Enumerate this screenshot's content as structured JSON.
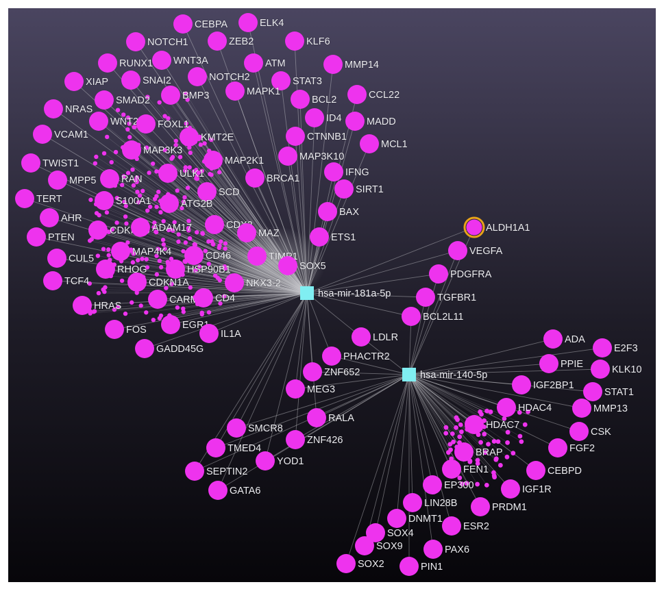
{
  "colors": {
    "background_top": "#4a4560",
    "background_bottom": "#07060a",
    "gene_node": "#ee33ee",
    "mirna_node": "#80eef2",
    "edge": "#c8c8cc",
    "highlight_ring": "#e8a21a",
    "label": "#ececf0"
  },
  "network": {
    "hubs": [
      {
        "label": "hsa-mir-181a-5p",
        "shape": "square"
      },
      {
        "label": "hsa-mir-140-5p",
        "shape": "square"
      }
    ],
    "nodes": [
      {
        "label": "CEBPA",
        "targets": [
          "hsa-mir-181a-5p"
        ]
      },
      {
        "label": "ELK4",
        "targets": [
          "hsa-mir-181a-5p"
        ]
      },
      {
        "label": "NOTCH1",
        "targets": [
          "hsa-mir-181a-5p"
        ]
      },
      {
        "label": "ZEB2",
        "targets": [
          "hsa-mir-181a-5p"
        ]
      },
      {
        "label": "KLF6",
        "targets": [
          "hsa-mir-181a-5p"
        ]
      },
      {
        "label": "RUNX1",
        "targets": [
          "hsa-mir-181a-5p"
        ]
      },
      {
        "label": "WNT3A",
        "targets": [
          "hsa-mir-181a-5p"
        ]
      },
      {
        "label": "ATM",
        "targets": [
          "hsa-mir-181a-5p"
        ]
      },
      {
        "label": "MMP14",
        "targets": [
          "hsa-mir-181a-5p"
        ]
      },
      {
        "label": "XIAP",
        "targets": [
          "hsa-mir-181a-5p"
        ]
      },
      {
        "label": "SNAI2",
        "targets": [
          "hsa-mir-181a-5p"
        ]
      },
      {
        "label": "NOTCH2",
        "targets": [
          "hsa-mir-181a-5p"
        ]
      },
      {
        "label": "STAT3",
        "targets": [
          "hsa-mir-181a-5p"
        ]
      },
      {
        "label": "MAPK1",
        "targets": [
          "hsa-mir-181a-5p"
        ]
      },
      {
        "label": "BCL2",
        "targets": [
          "hsa-mir-181a-5p"
        ]
      },
      {
        "label": "CCL22",
        "targets": [
          "hsa-mir-181a-5p"
        ]
      },
      {
        "label": "SMAD2",
        "targets": [
          "hsa-mir-181a-5p"
        ]
      },
      {
        "label": "BMP3",
        "targets": [
          "hsa-mir-181a-5p"
        ]
      },
      {
        "label": "NRAS",
        "targets": [
          "hsa-mir-181a-5p"
        ]
      },
      {
        "label": "WNT2",
        "targets": [
          "hsa-mir-181a-5p"
        ]
      },
      {
        "label": "FOXL1",
        "targets": [
          "hsa-mir-181a-5p"
        ]
      },
      {
        "label": "ID4",
        "targets": [
          "hsa-mir-181a-5p"
        ]
      },
      {
        "label": "MADD",
        "targets": [
          "hsa-mir-181a-5p"
        ]
      },
      {
        "label": "VCAM1",
        "targets": [
          "hsa-mir-181a-5p"
        ]
      },
      {
        "label": "KMT2E",
        "targets": [
          "hsa-mir-181a-5p"
        ]
      },
      {
        "label": "CTNNB1",
        "targets": [
          "hsa-mir-181a-5p"
        ]
      },
      {
        "label": "MCL1",
        "targets": [
          "hsa-mir-181a-5p"
        ]
      },
      {
        "label": "MAP3K3",
        "targets": [
          "hsa-mir-181a-5p"
        ]
      },
      {
        "label": "MAP2K1",
        "targets": [
          "hsa-mir-181a-5p"
        ]
      },
      {
        "label": "MAP3K10",
        "targets": [
          "hsa-mir-181a-5p"
        ]
      },
      {
        "label": "TWIST1",
        "targets": [
          "hsa-mir-181a-5p"
        ]
      },
      {
        "label": "ULK1",
        "targets": [
          "hsa-mir-181a-5p"
        ]
      },
      {
        "label": "BRCA1",
        "targets": [
          "hsa-mir-181a-5p"
        ]
      },
      {
        "label": "IFNG",
        "targets": [
          "hsa-mir-181a-5p"
        ]
      },
      {
        "label": "MPP5",
        "targets": [
          "hsa-mir-181a-5p"
        ]
      },
      {
        "label": "RAN",
        "targets": [
          "hsa-mir-181a-5p"
        ]
      },
      {
        "label": "SIRT1",
        "targets": [
          "hsa-mir-181a-5p"
        ]
      },
      {
        "label": "SCD",
        "targets": [
          "hsa-mir-181a-5p"
        ]
      },
      {
        "label": "TERT",
        "targets": [
          "hsa-mir-181a-5p"
        ]
      },
      {
        "label": "S100A1",
        "targets": [
          "hsa-mir-181a-5p"
        ]
      },
      {
        "label": "ATG2B",
        "targets": [
          "hsa-mir-181a-5p"
        ]
      },
      {
        "label": "BAX",
        "targets": [
          "hsa-mir-181a-5p"
        ]
      },
      {
        "label": "AHR",
        "targets": [
          "hsa-mir-181a-5p"
        ]
      },
      {
        "label": "CDKN1B",
        "targets": [
          "hsa-mir-181a-5p"
        ]
      },
      {
        "label": "ADAM17",
        "targets": [
          "hsa-mir-181a-5p"
        ]
      },
      {
        "label": "CDX2",
        "targets": [
          "hsa-mir-181a-5p"
        ]
      },
      {
        "label": "MAZ",
        "targets": [
          "hsa-mir-181a-5p"
        ]
      },
      {
        "label": "ETS1",
        "targets": [
          "hsa-mir-181a-5p"
        ]
      },
      {
        "label": "PTEN",
        "targets": [
          "hsa-mir-181a-5p"
        ]
      },
      {
        "label": "CUL5",
        "targets": [
          "hsa-mir-181a-5p"
        ]
      },
      {
        "label": "MAP4K4",
        "targets": [
          "hsa-mir-181a-5p"
        ]
      },
      {
        "label": "CD46",
        "targets": [
          "hsa-mir-181a-5p"
        ]
      },
      {
        "label": "TIMP1",
        "targets": [
          "hsa-mir-181a-5p"
        ]
      },
      {
        "label": "SOX5",
        "targets": [
          "hsa-mir-181a-5p"
        ]
      },
      {
        "label": "RHOG",
        "targets": [
          "hsa-mir-181a-5p"
        ]
      },
      {
        "label": "HSP90B1",
        "targets": [
          "hsa-mir-181a-5p"
        ]
      },
      {
        "label": "TCF4",
        "targets": [
          "hsa-mir-181a-5p"
        ]
      },
      {
        "label": "CDKN1A",
        "targets": [
          "hsa-mir-181a-5p"
        ]
      },
      {
        "label": "NKX3-2",
        "targets": [
          "hsa-mir-181a-5p"
        ]
      },
      {
        "label": "CARM1",
        "targets": [
          "hsa-mir-181a-5p"
        ]
      },
      {
        "label": "CD4",
        "targets": [
          "hsa-mir-181a-5p"
        ]
      },
      {
        "label": "HRAS",
        "targets": [
          "hsa-mir-181a-5p"
        ]
      },
      {
        "label": "EGR1",
        "targets": [
          "hsa-mir-181a-5p"
        ]
      },
      {
        "label": "FOS",
        "targets": [
          "hsa-mir-181a-5p"
        ]
      },
      {
        "label": "IL1A",
        "targets": [
          "hsa-mir-181a-5p"
        ]
      },
      {
        "label": "GADD45G",
        "targets": [
          "hsa-mir-181a-5p"
        ]
      },
      {
        "label": "ALDH1A1",
        "targets": [
          "hsa-mir-181a-5p",
          "hsa-mir-140-5p"
        ],
        "highlighted": true
      },
      {
        "label": "VEGFA",
        "targets": [
          "hsa-mir-181a-5p",
          "hsa-mir-140-5p"
        ]
      },
      {
        "label": "PDGFRA",
        "targets": [
          "hsa-mir-181a-5p",
          "hsa-mir-140-5p"
        ]
      },
      {
        "label": "TGFBR1",
        "targets": [
          "hsa-mir-181a-5p",
          "hsa-mir-140-5p"
        ]
      },
      {
        "label": "BCL2L11",
        "targets": [
          "hsa-mir-181a-5p",
          "hsa-mir-140-5p"
        ]
      },
      {
        "label": "LDLR",
        "targets": [
          "hsa-mir-181a-5p",
          "hsa-mir-140-5p"
        ]
      },
      {
        "label": "PHACTR2",
        "targets": [
          "hsa-mir-181a-5p",
          "hsa-mir-140-5p"
        ]
      },
      {
        "label": "ZNF652",
        "targets": [
          "hsa-mir-181a-5p",
          "hsa-mir-140-5p"
        ]
      },
      {
        "label": "MEG3",
        "targets": [
          "hsa-mir-181a-5p",
          "hsa-mir-140-5p"
        ]
      },
      {
        "label": "RALA",
        "targets": [
          "hsa-mir-181a-5p",
          "hsa-mir-140-5p"
        ]
      },
      {
        "label": "SMCR8",
        "targets": [
          "hsa-mir-181a-5p",
          "hsa-mir-140-5p"
        ]
      },
      {
        "label": "ZNF426",
        "targets": [
          "hsa-mir-181a-5p",
          "hsa-mir-140-5p"
        ]
      },
      {
        "label": "TMED4",
        "targets": [
          "hsa-mir-181a-5p",
          "hsa-mir-140-5p"
        ]
      },
      {
        "label": "YOD1",
        "targets": [
          "hsa-mir-181a-5p",
          "hsa-mir-140-5p"
        ]
      },
      {
        "label": "SEPTIN2",
        "targets": [
          "hsa-mir-181a-5p",
          "hsa-mir-140-5p"
        ]
      },
      {
        "label": "GATA6",
        "targets": [
          "hsa-mir-181a-5p",
          "hsa-mir-140-5p"
        ]
      },
      {
        "label": "ADA",
        "targets": [
          "hsa-mir-140-5p"
        ]
      },
      {
        "label": "E2F3",
        "targets": [
          "hsa-mir-140-5p"
        ]
      },
      {
        "label": "PPIE",
        "targets": [
          "hsa-mir-140-5p"
        ]
      },
      {
        "label": "KLK10",
        "targets": [
          "hsa-mir-140-5p"
        ]
      },
      {
        "label": "IGF2BP1",
        "targets": [
          "hsa-mir-140-5p"
        ]
      },
      {
        "label": "STAT1",
        "targets": [
          "hsa-mir-140-5p"
        ]
      },
      {
        "label": "MMP13",
        "targets": [
          "hsa-mir-140-5p"
        ]
      },
      {
        "label": "HDAC4",
        "targets": [
          "hsa-mir-140-5p"
        ]
      },
      {
        "label": "HDAC7",
        "targets": [
          "hsa-mir-140-5p"
        ]
      },
      {
        "label": "CSK",
        "targets": [
          "hsa-mir-140-5p"
        ]
      },
      {
        "label": "FGF2",
        "targets": [
          "hsa-mir-140-5p"
        ]
      },
      {
        "label": "BRAP",
        "targets": [
          "hsa-mir-140-5p"
        ]
      },
      {
        "label": "CEBPD",
        "targets": [
          "hsa-mir-140-5p"
        ]
      },
      {
        "label": "FEN1",
        "targets": [
          "hsa-mir-140-5p"
        ]
      },
      {
        "label": "EP300",
        "targets": [
          "hsa-mir-140-5p"
        ]
      },
      {
        "label": "IGF1R",
        "targets": [
          "hsa-mir-140-5p"
        ]
      },
      {
        "label": "LIN28B",
        "targets": [
          "hsa-mir-140-5p"
        ]
      },
      {
        "label": "PRDM1",
        "targets": [
          "hsa-mir-140-5p"
        ]
      },
      {
        "label": "DNMT1",
        "targets": [
          "hsa-mir-140-5p"
        ]
      },
      {
        "label": "ESR2",
        "targets": [
          "hsa-mir-140-5p"
        ]
      },
      {
        "label": "SOX4",
        "targets": [
          "hsa-mir-140-5p"
        ]
      },
      {
        "label": "SOX9",
        "targets": [
          "hsa-mir-140-5p"
        ]
      },
      {
        "label": "PAX6",
        "targets": [
          "hsa-mir-140-5p"
        ]
      },
      {
        "label": "SOX2",
        "targets": [
          "hsa-mir-140-5p"
        ]
      },
      {
        "label": "PIN1",
        "targets": [
          "hsa-mir-140-5p"
        ]
      }
    ]
  }
}
